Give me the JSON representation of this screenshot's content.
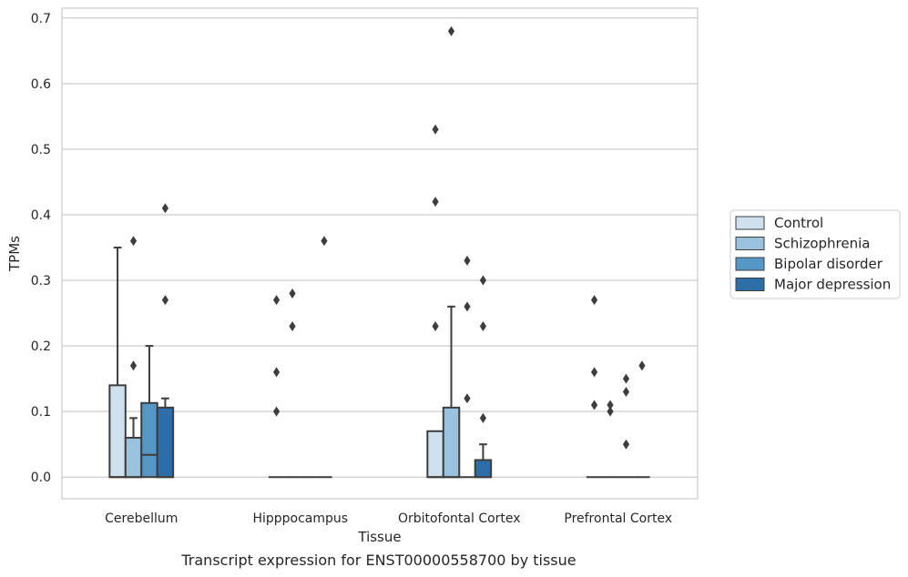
{
  "caption": "Transcript expression for ENST00000558700 by tissue",
  "chart_data": {
    "type": "box",
    "xlabel": "Tissue",
    "ylabel": "TPMs",
    "ylim": [
      -0.033,
      0.715
    ],
    "yticks": [
      0.0,
      0.1,
      0.2,
      0.3,
      0.4,
      0.5,
      0.6,
      0.7
    ],
    "ytick_labels": [
      "0.0",
      "0.1",
      "0.2",
      "0.3",
      "0.4",
      "0.5",
      "0.6",
      "0.7"
    ],
    "grid": "horizontal",
    "legend_position": "right",
    "categories": [
      "Cerebellum",
      "Hipppocampus",
      "Orbitofontal Cortex",
      "Prefrontal Cortex"
    ],
    "series": [
      {
        "name": "Control",
        "color": "#cfe0ef",
        "boxes": [
          {
            "q1": 0.0,
            "median": 0.0,
            "q3": 0.14,
            "whislo": 0.0,
            "whishi": 0.35,
            "fliers": []
          },
          {
            "q1": 0.0,
            "median": 0.0,
            "q3": 0.0,
            "whislo": 0.0,
            "whishi": 0.0,
            "fliers": [
              0.27,
              0.16,
              0.1
            ]
          },
          {
            "q1": 0.0,
            "median": 0.0,
            "q3": 0.07,
            "whislo": 0.0,
            "whishi": 0.07,
            "fliers": [
              0.53,
              0.42,
              0.23
            ]
          },
          {
            "q1": 0.0,
            "median": 0.0,
            "q3": 0.0,
            "whislo": 0.0,
            "whishi": 0.0,
            "fliers": [
              0.27,
              0.16,
              0.11
            ]
          }
        ]
      },
      {
        "name": "Schizophrenia",
        "color": "#9ac2dc",
        "boxes": [
          {
            "q1": 0.0,
            "median": 0.0,
            "q3": 0.06,
            "whislo": 0.0,
            "whishi": 0.09,
            "fliers": [
              0.36,
              0.17
            ]
          },
          {
            "q1": 0.0,
            "median": 0.0,
            "q3": 0.0,
            "whislo": 0.0,
            "whishi": 0.0,
            "fliers": [
              0.28,
              0.23
            ]
          },
          {
            "q1": 0.0,
            "median": 0.0,
            "q3": 0.106,
            "whislo": 0.0,
            "whishi": 0.26,
            "fliers": [
              0.68
            ]
          },
          {
            "q1": 0.0,
            "median": 0.0,
            "q3": 0.0,
            "whislo": 0.0,
            "whishi": 0.0,
            "fliers": [
              0.11,
              0.1
            ]
          }
        ]
      },
      {
        "name": "Bipolar disorder",
        "color": "#5597c6",
        "boxes": [
          {
            "q1": 0.0,
            "median": 0.034,
            "q3": 0.113,
            "whislo": 0.0,
            "whishi": 0.2,
            "fliers": []
          },
          {
            "q1": 0.0,
            "median": 0.0,
            "q3": 0.0,
            "whislo": 0.0,
            "whishi": 0.0,
            "fliers": []
          },
          {
            "q1": 0.0,
            "median": 0.0,
            "q3": 0.0,
            "whislo": 0.0,
            "whishi": 0.0,
            "fliers": [
              0.33,
              0.26,
              0.12
            ]
          },
          {
            "q1": 0.0,
            "median": 0.0,
            "q3": 0.0,
            "whislo": 0.0,
            "whishi": 0.0,
            "fliers": [
              0.15,
              0.13,
              0.05
            ]
          }
        ]
      },
      {
        "name": "Major depression",
        "color": "#2e6ea8",
        "boxes": [
          {
            "q1": 0.0,
            "median": 0.0,
            "q3": 0.106,
            "whislo": 0.0,
            "whishi": 0.12,
            "fliers": [
              0.41,
              0.27
            ]
          },
          {
            "q1": 0.0,
            "median": 0.0,
            "q3": 0.0,
            "whislo": 0.0,
            "whishi": 0.0,
            "fliers": [
              0.36
            ]
          },
          {
            "q1": 0.0,
            "median": 0.0,
            "q3": 0.026,
            "whislo": 0.0,
            "whishi": 0.05,
            "fliers": [
              0.3,
              0.23,
              0.09
            ]
          },
          {
            "q1": 0.0,
            "median": 0.0,
            "q3": 0.0,
            "whislo": 0.0,
            "whishi": 0.0,
            "fliers": [
              0.17
            ]
          }
        ]
      }
    ]
  }
}
